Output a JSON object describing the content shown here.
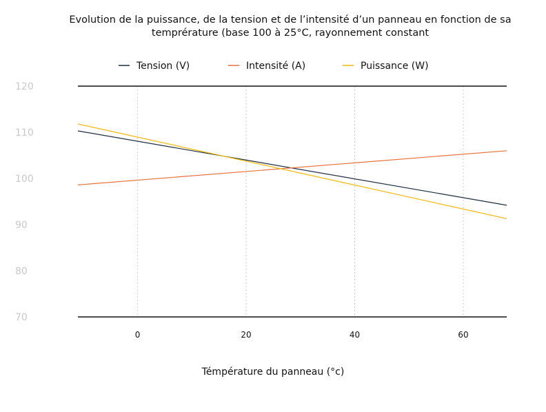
{
  "chart_data": {
    "type": "line",
    "title": "Evolution de la puissance, de la tension et de l’intensité d’un panneau en fonction de sa temprérature (base 100 à 25°C, rayonnement constant",
    "xlabel": "Témpérature du panneau (°c)",
    "ylabel": "",
    "xlim": [
      -11,
      68
    ],
    "ylim": [
      70,
      120
    ],
    "xticks": [
      0,
      20,
      40,
      60
    ],
    "yticks": [
      70,
      80,
      90,
      100,
      110,
      120
    ],
    "legend_position": "top",
    "grid": {
      "x": true,
      "y": false
    },
    "x": [
      -11,
      68
    ],
    "series": [
      {
        "name": "Tension (V)",
        "color": "#1b2a41",
        "values": [
          110.3,
          94.2
        ]
      },
      {
        "name": "Intensité (A)",
        "color": "#e8703a",
        "values": [
          98.6,
          106.0
        ]
      },
      {
        "name": "Puissance (W)",
        "color": "#f2b705",
        "values": [
          111.8,
          91.3
        ]
      }
    ]
  }
}
